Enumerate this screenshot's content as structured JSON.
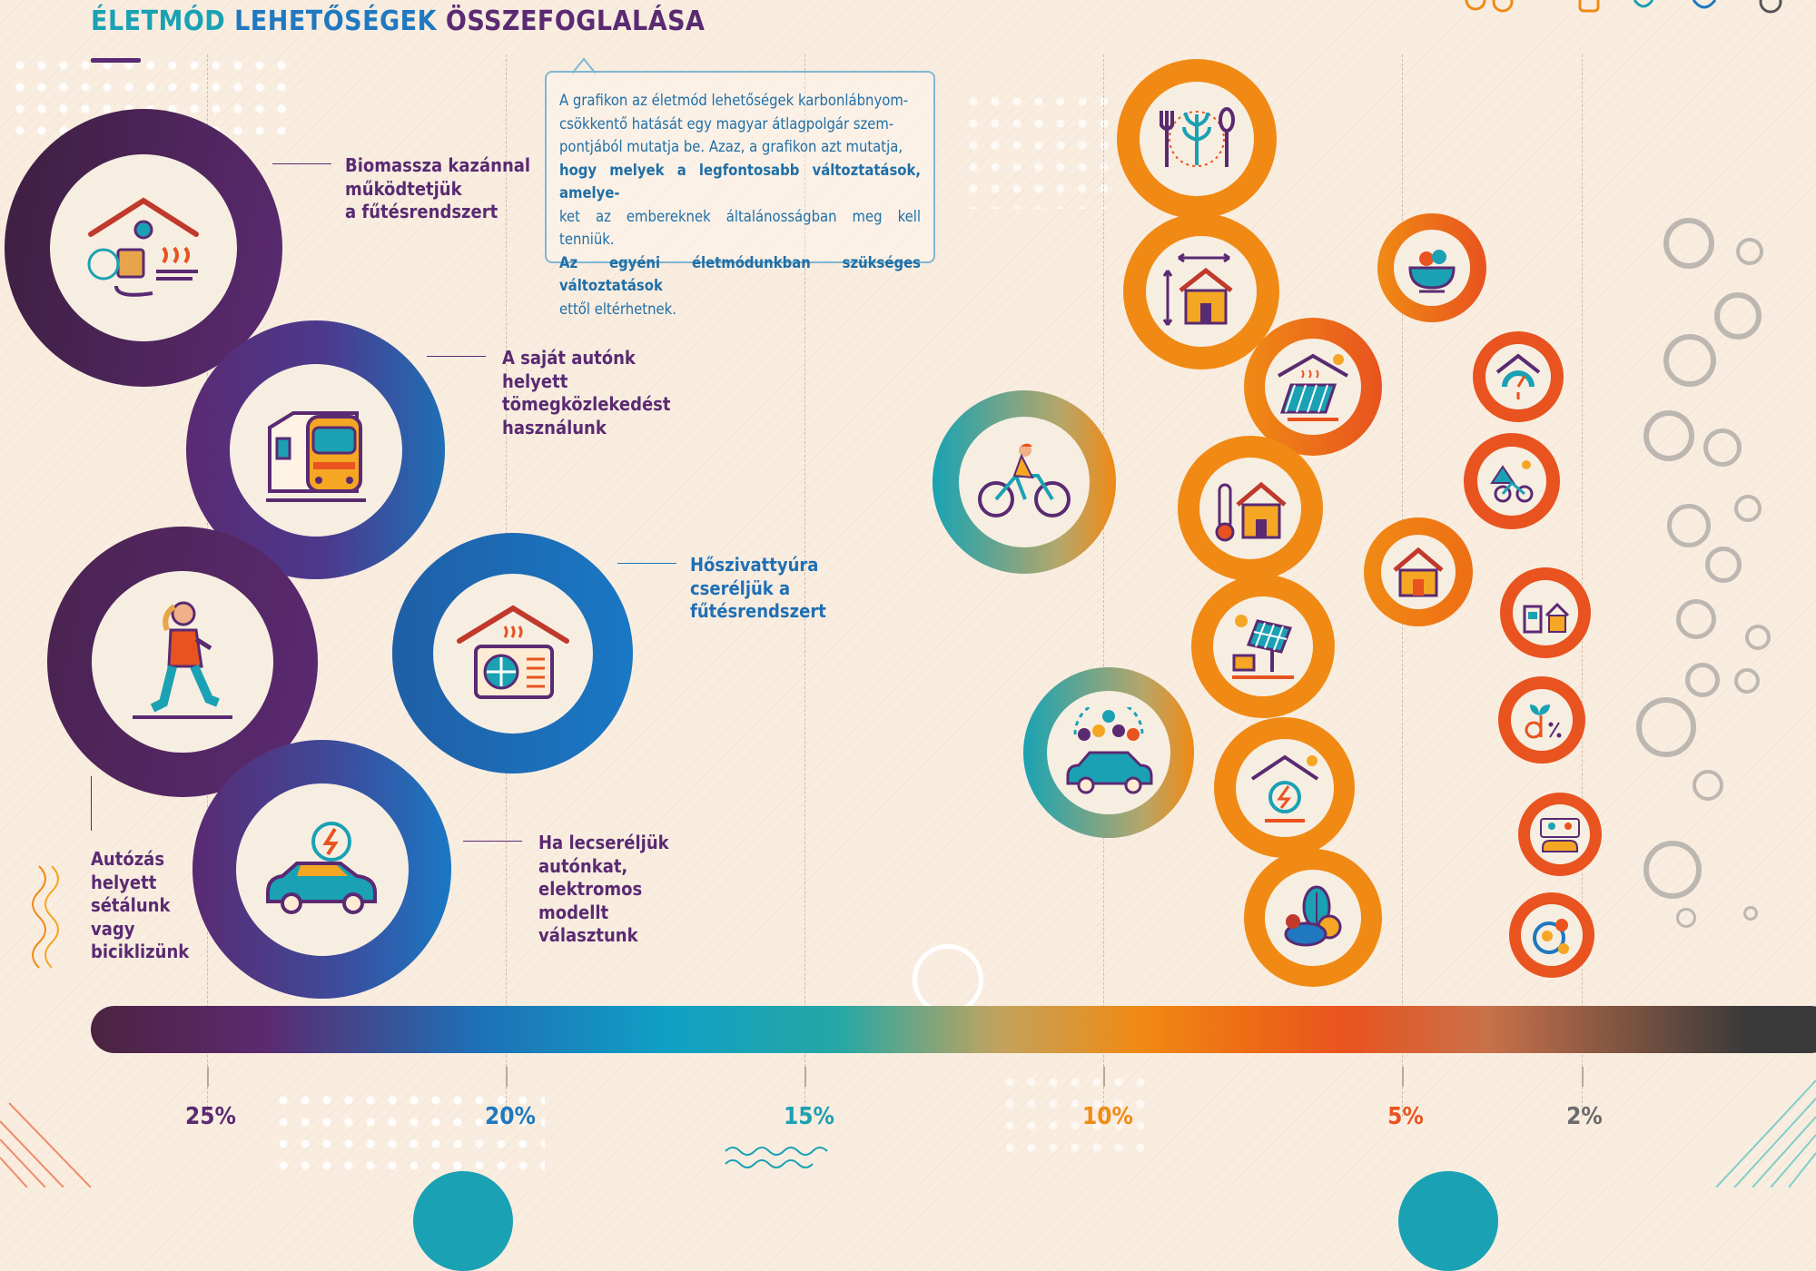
{
  "title": {
    "part1": "ÉLETMÓD",
    "part2": "LEHETŐSÉGEK",
    "part3": "ÖSSZEFOGLALÁSA"
  },
  "info": {
    "line1": "A grafikon az életmód lehetőségek karbonlábnyom-",
    "line2": "csökkentő hatását egy magyar átlagpolgár szem-",
    "line3": "pontjából mutatja be. Azaz, a grafikon azt mutatja,",
    "line4": "hogy melyek a legfontosabb változtatások, amelye-",
    "line5": "ket az embereknek általánosságban meg kell tenniük.",
    "line6": "Az egyéni életmódunkban szükséges változtatások",
    "line7": "ettől eltérhetnek."
  },
  "labels": {
    "biomass": [
      "Biomassza kazánnal",
      "működtetjük",
      "a fűtésrendszert"
    ],
    "transit": [
      "A saját autónk",
      "helyett",
      "tömegközlekedést",
      "használunk"
    ],
    "heatpump": [
      "Hőszivattyúra",
      "cseréljük a",
      "fűtésrendszert"
    ],
    "walking": [
      "Autózás",
      "helyett",
      "sétálunk",
      "vagy",
      "biciklizünk"
    ],
    "ev": [
      "Ha lecseréljük",
      "autónkat,",
      "elektromos",
      "modellt",
      "választunk"
    ]
  },
  "axis": {
    "ticks": [
      "25%",
      "20%",
      "15%",
      "10%",
      "5%",
      "2%"
    ],
    "colors": [
      "#5a2a72",
      "#1f78c0",
      "#1aa1b4",
      "#f08a14",
      "#e8531f",
      "#6b6b6b"
    ]
  },
  "icons": [
    "biomass-house-icon",
    "train-icon",
    "walking-person-icon",
    "heat-pump-icon",
    "electric-car-icon",
    "cyclist-icon",
    "plant-based-meal-icon",
    "house-size-icon",
    "solar-water-heater-icon",
    "thermostat-house-icon",
    "insulated-house-icon",
    "solar-panel-icon",
    "carpool-icon",
    "renewable-electricity-house-icon",
    "local-food-icon",
    "salad-bowl-icon",
    "heating-gauge-icon",
    "bike-vacation-icon",
    "smart-home-icon",
    "plant-percent-icon",
    "shared-car-icon",
    "food-waste-icon"
  ]
}
